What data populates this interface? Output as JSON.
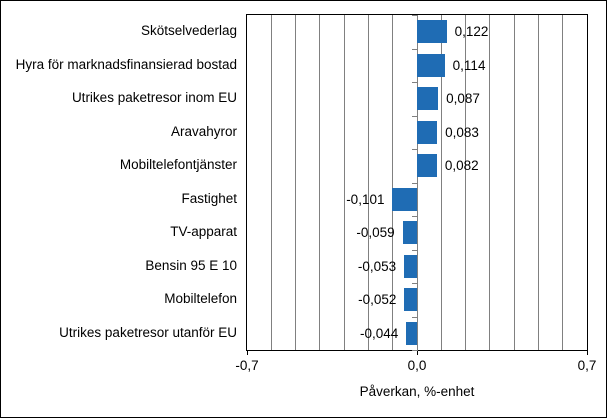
{
  "chart_data": {
    "type": "bar",
    "orientation": "horizontal",
    "title": "",
    "categories": [
      "Skötselvederlag",
      "Hyra för marknadsfinansierad bostad",
      "Utrikes paketresor inom EU",
      "Aravahyror",
      "Mobiltelefontjänster",
      "Fastighet",
      "TV-apparat",
      "Bensin 95 E 10",
      "Mobiltelefon",
      "Utrikes paketresor utanför EU"
    ],
    "values": [
      0.122,
      0.114,
      0.087,
      0.083,
      0.082,
      -0.101,
      -0.059,
      -0.053,
      -0.052,
      -0.044
    ],
    "value_labels": [
      "0,122",
      "0,114",
      "0,087",
      "0,083",
      "0,082",
      "-0,101",
      "-0,059",
      "-0,053",
      "-0,052",
      "-0,044"
    ],
    "xlabel": "Påverkan, %-enhet",
    "ylabel": "",
    "xlim": [
      -0.7,
      0.7
    ],
    "x_tick_values": [
      -0.7,
      0.0,
      0.7
    ],
    "x_tick_labels": [
      "-0,7",
      "0,0",
      "0,7"
    ],
    "gridline_interval": 0.1,
    "grid": true,
    "legend": "none",
    "bar_color": "#1f6cb4",
    "gridline_color": "#808080",
    "axis_color": "#000000",
    "text_color": "#000000"
  }
}
